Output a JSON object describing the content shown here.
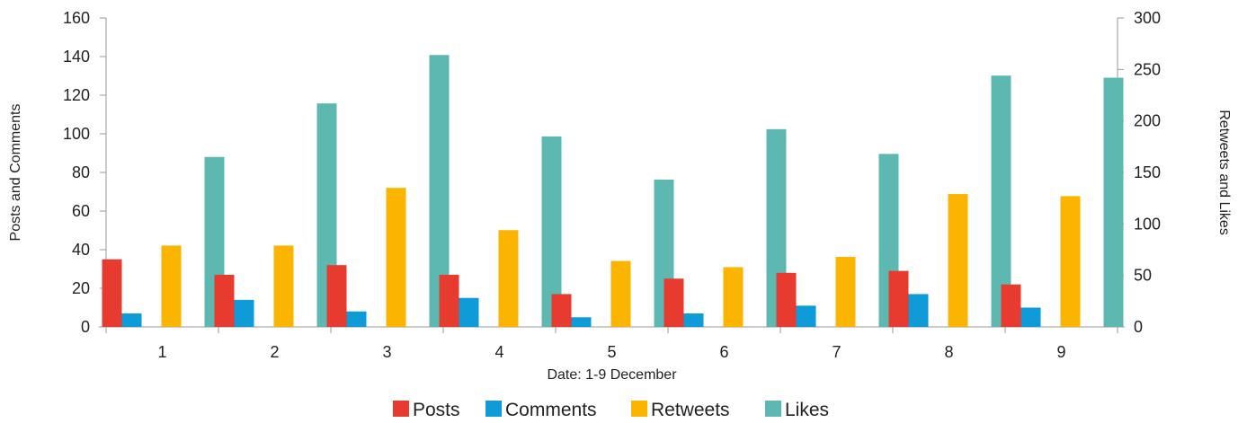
{
  "chart_data": {
    "type": "bar",
    "title": "",
    "xlabel": "Date: 1-9 December",
    "ylabel": "Posts and Comments",
    "y2label": "Retweets and Likes",
    "categories": [
      "1",
      "2",
      "3",
      "4",
      "5",
      "6",
      "7",
      "8",
      "9"
    ],
    "ylim": [
      0,
      160
    ],
    "y2lim": [
      0,
      300
    ],
    "yticks": [
      "0",
      "20",
      "40",
      "60",
      "80",
      "100",
      "120",
      "140",
      "160"
    ],
    "y2ticks": [
      "0",
      "50",
      "100",
      "150",
      "200",
      "250",
      "300"
    ],
    "grid": false,
    "legend_position": "bottom",
    "series": [
      {
        "name": "Posts",
        "axis": "left",
        "color": "#e63b2e",
        "values": [
          35,
          27,
          32,
          27,
          17,
          25,
          28,
          29,
          22
        ]
      },
      {
        "name": "Comments",
        "axis": "left",
        "color": "#0f9ad8",
        "values": [
          7,
          14,
          8,
          15,
          5,
          7,
          11,
          17,
          10
        ]
      },
      {
        "name": "Retweets",
        "axis": "right",
        "color": "#fbb400",
        "values": [
          79,
          79,
          135,
          94,
          64,
          58,
          68,
          129,
          127
        ]
      },
      {
        "name": "Likes",
        "axis": "right",
        "color": "#5cb8b0",
        "values": [
          165,
          217,
          264,
          185,
          143,
          192,
          168,
          244,
          242
        ]
      }
    ]
  }
}
